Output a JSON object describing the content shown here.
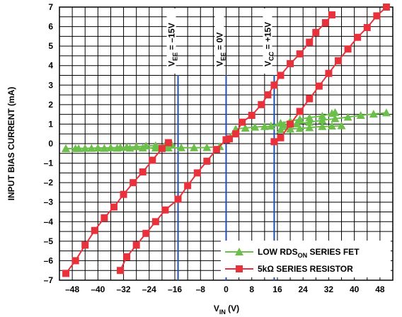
{
  "chart_data": {
    "type": "line",
    "xlabel_main": "V",
    "xlabel_sub": "IN",
    "xlabel_suffix": " (V)",
    "ylabel": "INPUT BIAS CURRENT (mA)",
    "xlim": [
      -52,
      52
    ],
    "ylim": [
      -7,
      7
    ],
    "xticks": [
      -48,
      -40,
      -32,
      -24,
      -16,
      -8,
      0,
      8,
      16,
      24,
      32,
      40,
      48
    ],
    "yticks": [
      -7,
      -6,
      -5,
      -4,
      -3,
      -2,
      -1,
      0,
      1,
      2,
      3,
      4,
      5,
      6,
      7
    ],
    "xtick_labels": [
      "–48",
      "–40",
      "–32",
      "–24",
      "–16",
      "–8",
      "0",
      "8",
      "16",
      "24",
      "32",
      "40",
      "48"
    ],
    "ytick_labels": [
      "–7",
      "–6",
      "–5",
      "–4",
      "–3",
      "–2",
      "–1",
      "0",
      "1",
      "2",
      "3",
      "4",
      "5",
      "6",
      "7"
    ],
    "grid": true,
    "reference_lines": [
      {
        "x": -15,
        "label_main": "V",
        "label_sub": "EE",
        "label_rest": " = –15V",
        "color": "#1f4fb4"
      },
      {
        "x": 0,
        "label_main": "V",
        "label_sub": "EE",
        "label_rest": " = 0V",
        "color": "#1f4fb4"
      },
      {
        "x": 15,
        "label_main": "V",
        "label_sub": "CC",
        "label_rest": " = +15V",
        "color": "#1f4fb4"
      }
    ],
    "series": [
      {
        "name_main": "LOW RDS",
        "name_sub": "ON",
        "name_rest": " SERIES FET",
        "color": "#6cbf4a",
        "marker": "triangle",
        "segments": [
          [
            [
              -50,
              -0.25
            ],
            [
              -47,
              -0.25
            ],
            [
              -44,
              -0.24
            ],
            [
              -40,
              -0.22
            ],
            [
              -36,
              -0.21
            ],
            [
              -33,
              -0.2
            ],
            [
              -31,
              -0.18
            ],
            [
              -28,
              -0.15
            ],
            [
              -25,
              -0.12
            ],
            [
              -22,
              -0.1
            ],
            [
              -19,
              -0.07
            ],
            [
              -17,
              -0.05
            ]
          ],
          [
            [
              -50,
              -0.26
            ],
            [
              -46,
              -0.25
            ],
            [
              -42,
              -0.24
            ],
            [
              -38,
              -0.24
            ],
            [
              -34,
              -0.23
            ],
            [
              -30,
              -0.23
            ],
            [
              -26,
              -0.22
            ],
            [
              -22,
              -0.22
            ],
            [
              -18,
              -0.22
            ],
            [
              -14,
              -0.21
            ],
            [
              -10,
              -0.21
            ],
            [
              -6,
              -0.2
            ],
            [
              -2,
              -0.15
            ],
            [
              0,
              0.2
            ],
            [
              3,
              0.75
            ],
            [
              6,
              0.8
            ],
            [
              9,
              0.85
            ],
            [
              12,
              0.88
            ],
            [
              14,
              0.9
            ],
            [
              18,
              0.95
            ],
            [
              22,
              1.02
            ],
            [
              26,
              1.1
            ],
            [
              30,
              1.2
            ],
            [
              34,
              1.28
            ],
            [
              38,
              1.36
            ],
            [
              42,
              1.45
            ],
            [
              46,
              1.52
            ],
            [
              50,
              1.58
            ]
          ],
          [
            [
              17,
              0.72
            ],
            [
              20,
              0.75
            ],
            [
              23,
              0.78
            ],
            [
              26,
              0.82
            ],
            [
              30,
              0.88
            ],
            [
              33,
              0.9
            ],
            [
              36,
              0.92
            ]
          ],
          [
            [
              14,
              0.9
            ],
            [
              17,
              1.05
            ],
            [
              20,
              1.15
            ],
            [
              23,
              1.25
            ],
            [
              26,
              1.33
            ],
            [
              30,
              1.42
            ],
            [
              33,
              1.55
            ],
            [
              34,
              1.6
            ]
          ]
        ]
      },
      {
        "name_main": "5kΩ SERIES RESISTOR",
        "name_sub": "",
        "name_rest": "",
        "color": "#e8313a",
        "marker": "square",
        "segments": [
          [
            [
              -50,
              -6.65
            ],
            [
              -47,
              -6.0
            ],
            [
              -44,
              -5.2
            ],
            [
              -41,
              -4.45
            ],
            [
              -38,
              -3.8
            ],
            [
              -35,
              -3.25
            ],
            [
              -32,
              -2.6
            ],
            [
              -29,
              -2.0
            ],
            [
              -26,
              -1.45
            ],
            [
              -23,
              -0.85
            ],
            [
              -20,
              -0.25
            ],
            [
              -18,
              0.05
            ]
          ],
          [
            [
              -33,
              -6.5
            ],
            [
              -31,
              -5.8
            ],
            [
              -28,
              -5.2
            ],
            [
              -25,
              -4.6
            ],
            [
              -22,
              -4.0
            ],
            [
              -19,
              -3.4
            ],
            [
              -15,
              -2.85
            ],
            [
              -12,
              -2.15
            ],
            [
              -9,
              -1.5
            ],
            [
              -6,
              -0.9
            ],
            [
              -3,
              -0.3
            ],
            [
              0,
              0.2
            ],
            [
              1,
              0.25
            ],
            [
              3,
              0.5
            ],
            [
              5,
              1.1
            ],
            [
              8,
              1.45
            ],
            [
              11,
              2.0
            ],
            [
              13,
              2.5
            ],
            [
              15,
              3.0
            ],
            [
              17,
              3.5
            ],
            [
              20,
              4.1
            ],
            [
              23,
              4.6
            ],
            [
              26,
              5.2
            ],
            [
              28,
              5.7
            ],
            [
              31,
              6.2
            ],
            [
              33,
              6.6
            ]
          ],
          [
            [
              15,
              0.1
            ],
            [
              17,
              0.3
            ],
            [
              20,
              1.0
            ],
            [
              23,
              1.65
            ],
            [
              26,
              2.3
            ],
            [
              29,
              2.95
            ],
            [
              32,
              3.6
            ],
            [
              35,
              4.25
            ],
            [
              38,
              4.85
            ],
            [
              41,
              5.45
            ],
            [
              44,
              5.95
            ],
            [
              47,
              6.55
            ],
            [
              50,
              7.0
            ]
          ]
        ]
      }
    ],
    "legend_position": "bottom-right"
  }
}
